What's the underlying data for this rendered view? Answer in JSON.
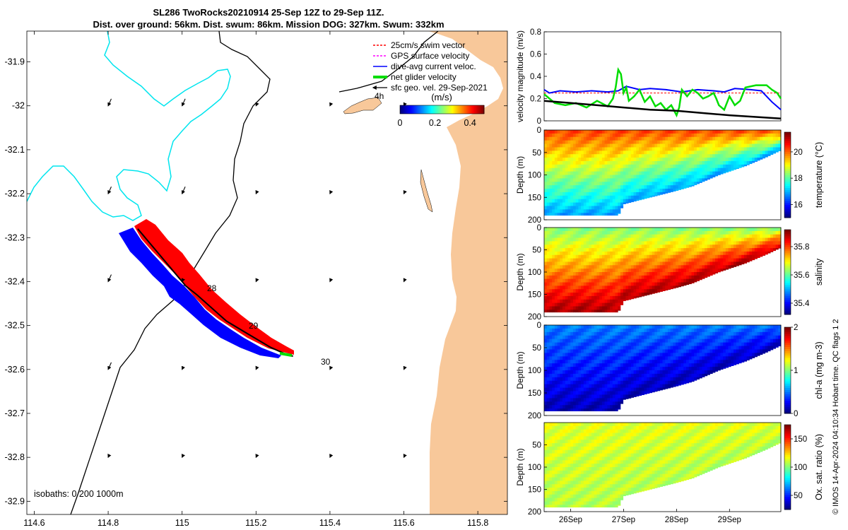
{
  "header": {
    "title_line1": "SL286 TwoRocks20210914 25-Sep 12Z to 29-Sep 11Z.",
    "title_line2": "Dist. over ground: 56km. Dist. swum: 86km. Mission DOG: 327km. Swum: 332km"
  },
  "colors": {
    "land": "#F8C89A",
    "isobath_0": "#00E5EE",
    "isobath_other": "#000000",
    "swim": "#FF0000",
    "gps": "#FF00FF",
    "current": "#0000FF",
    "net": "#00DD00",
    "geo": "#000000"
  },
  "map": {
    "isobaths_label": "isobaths: 0   200  1000m",
    "day_labels": [
      "28",
      "29",
      "30",
      "4h"
    ],
    "legend": {
      "items": [
        {
          "label": "25cm/s swim vector",
          "color": "#FF0000",
          "style": "dashed"
        },
        {
          "label": "GPS surface velocity",
          "color": "#FF00FF",
          "style": "dashed"
        },
        {
          "label": "dive-avg current veloc.",
          "color": "#0000FF",
          "style": "solid"
        },
        {
          "label": "net glider velocity",
          "color": "#00DD00",
          "style": "thick"
        },
        {
          "label": "sfc geo. vel. 29-Sep-2021",
          "color": "#000000",
          "style": "arrow"
        }
      ]
    },
    "colorbar": {
      "title": "(m/s)",
      "ticks": [
        "0",
        "0.2",
        "0.4"
      ]
    }
  },
  "chart_data": [
    {
      "type": "map",
      "xlabel": "",
      "ylabel": "",
      "xlim": [
        114.58,
        115.88
      ],
      "ylim": [
        -32.93,
        -31.83
      ],
      "xticks": [
        114.6,
        114.8,
        115,
        115.2,
        115.4,
        115.6,
        115.8
      ],
      "xtick_labels": [
        "114.6",
        "114.8",
        "115",
        "115.2",
        "115.4",
        "115.6",
        "115.8"
      ],
      "yticks": [
        -31.9,
        -32,
        -32.1,
        -32.2,
        -32.3,
        -32.4,
        -32.5,
        -32.6,
        -32.7,
        -32.8,
        -32.9
      ],
      "ytick_labels": [
        "-31.9",
        "-32",
        "-32.1",
        "-32.2",
        "-32.3",
        "-32.4",
        "-32.5",
        "-32.6",
        "-32.7",
        "-32.8",
        "-32.9"
      ],
      "glider_track": [
        [
          114.88,
          -32.28
        ],
        [
          114.93,
          -32.33
        ],
        [
          114.97,
          -32.37
        ],
        [
          115.01,
          -32.41
        ],
        [
          115.04,
          -32.43
        ],
        [
          115.08,
          -32.46
        ],
        [
          115.12,
          -32.49
        ],
        [
          115.18,
          -32.52
        ],
        [
          115.24,
          -32.55
        ],
        [
          115.28,
          -32.565
        ],
        [
          115.3,
          -32.57
        ]
      ]
    },
    {
      "type": "line",
      "xlabel": "",
      "ylabel": "velocity magnitude (m/s)",
      "xlim": [
        25.5,
        29.97
      ],
      "ylim": [
        0,
        0.8
      ],
      "yticks": [
        0,
        0.2,
        0.4,
        0.6,
        0.8
      ],
      "ytick_labels": [
        "0",
        "0.2",
        "0.4",
        "0.6",
        "0.8"
      ],
      "series": [
        {
          "color": "#FF0000",
          "x": [
            25.5,
            29.97
          ],
          "y": [
            0.25,
            0.25
          ]
        },
        {
          "color": "#0000FF",
          "x": [
            25.5,
            25.6,
            25.8,
            26.1,
            26.4,
            26.7,
            26.9,
            27.05,
            27.3,
            27.5,
            27.8,
            28.1,
            28.4,
            28.7,
            28.9,
            29.1,
            29.4,
            29.6,
            29.8,
            29.97
          ],
          "y": [
            0.28,
            0.25,
            0.27,
            0.26,
            0.27,
            0.26,
            0.27,
            0.31,
            0.28,
            0.29,
            0.28,
            0.26,
            0.28,
            0.27,
            0.26,
            0.29,
            0.28,
            0.27,
            0.17,
            0.1
          ]
        },
        {
          "color": "#00DD00",
          "x": [
            25.5,
            25.6,
            25.7,
            25.9,
            26.1,
            26.3,
            26.5,
            26.7,
            26.8,
            26.85,
            26.9,
            26.95,
            27.0,
            27.05,
            27.1,
            27.2,
            27.3,
            27.4,
            27.5,
            27.6,
            27.7,
            27.8,
            27.9,
            28.0,
            28.05,
            28.1,
            28.2,
            28.3,
            28.4,
            28.5,
            28.6,
            28.7,
            28.75,
            28.8,
            28.9,
            29.0,
            29.1,
            29.2,
            29.3,
            29.5,
            29.7,
            29.8,
            29.9,
            29.97
          ],
          "y": [
            0.24,
            0.2,
            0.16,
            0.14,
            0.16,
            0.12,
            0.18,
            0.13,
            0.2,
            0.3,
            0.46,
            0.42,
            0.25,
            0.3,
            0.18,
            0.22,
            0.28,
            0.17,
            0.22,
            0.13,
            0.16,
            0.1,
            0.14,
            0.05,
            0.12,
            0.28,
            0.22,
            0.28,
            0.25,
            0.2,
            0.22,
            0.25,
            0.2,
            0.14,
            0.1,
            0.22,
            0.14,
            0.18,
            0.3,
            0.32,
            0.32,
            0.28,
            0.25,
            0.2
          ]
        },
        {
          "color": "#000000",
          "x": [
            25.5,
            26.0,
            26.5,
            27.0,
            27.5,
            28.0,
            28.5,
            29.0,
            29.5,
            29.97
          ],
          "y": [
            0.18,
            0.16,
            0.14,
            0.12,
            0.1,
            0.09,
            0.07,
            0.05,
            0.035,
            0.02
          ]
        }
      ]
    },
    {
      "type": "heatmap",
      "xlabel": "",
      "ylabel": "Depth (m)",
      "xlim": [
        25.5,
        29.97
      ],
      "ylim": [
        200,
        0
      ],
      "yticks": [
        0,
        50,
        100,
        150,
        200
      ],
      "ytick_labels": [
        "0",
        "50",
        "100",
        "150",
        "200"
      ],
      "colorbar_label": "temperature (°C)",
      "clim": [
        15,
        21.5
      ],
      "colorbar_ticks": [
        16,
        18,
        20
      ],
      "colorbar_tick_labels": [
        "16",
        "18",
        "20"
      ],
      "bottom_depth": {
        "x": [
          25.5,
          26.0,
          26.5,
          26.9,
          27.0,
          28.0,
          28.3,
          28.8,
          29.3,
          29.7,
          29.97
        ],
        "y": [
          190,
          190,
          190,
          190,
          165,
          135,
          125,
          100,
          80,
          60,
          45
        ]
      },
      "surface_value": 20.3,
      "bottom_value": 16.8
    },
    {
      "type": "heatmap",
      "xlabel": "",
      "ylabel": "Depth (m)",
      "xlim": [
        25.5,
        29.97
      ],
      "ylim": [
        200,
        0
      ],
      "yticks": [
        0,
        50,
        100,
        150,
        200
      ],
      "ytick_labels": [
        "0",
        "50",
        "100",
        "150",
        "200"
      ],
      "colorbar_label": "salinity",
      "clim": [
        35.32,
        35.92
      ],
      "colorbar_ticks": [
        35.4,
        35.6,
        35.8
      ],
      "colorbar_tick_labels": [
        "35.4",
        "35.6",
        "35.8"
      ],
      "bottom_depth": {
        "x": [
          25.5,
          26.0,
          26.5,
          26.9,
          27.0,
          28.0,
          28.3,
          28.8,
          29.3,
          29.7,
          29.97
        ],
        "y": [
          190,
          190,
          190,
          190,
          165,
          135,
          125,
          100,
          80,
          60,
          45
        ]
      },
      "surface_value": 35.62,
      "bottom_value": 35.9
    },
    {
      "type": "heatmap",
      "xlabel": "",
      "ylabel": "Depth (m)",
      "xlim": [
        25.5,
        29.97
      ],
      "ylim": [
        200,
        0
      ],
      "yticks": [
        0,
        50,
        100,
        150,
        200
      ],
      "ytick_labels": [
        "0",
        "50",
        "100",
        "150",
        "200"
      ],
      "colorbar_label": "chl-a (mg m-3)",
      "clim": [
        0,
        2
      ],
      "colorbar_ticks": [
        0,
        1,
        2
      ],
      "colorbar_tick_labels": [
        "0",
        "1",
        "2"
      ],
      "bottom_depth": {
        "x": [
          25.5,
          26.0,
          26.5,
          26.9,
          27.0,
          28.0,
          28.3,
          28.8,
          29.3,
          29.7,
          29.97
        ],
        "y": [
          190,
          190,
          190,
          190,
          165,
          135,
          125,
          100,
          80,
          60,
          45
        ]
      },
      "surface_value": 0.5,
      "bottom_value": 0.1
    },
    {
      "type": "heatmap",
      "xlabel": "",
      "ylabel": "Depth (m)",
      "xlim": [
        25.5,
        29.97
      ],
      "ylim": [
        200,
        0
      ],
      "yticks": [
        50,
        100,
        150,
        200
      ],
      "ytick_labels": [
        "50",
        "100",
        "150",
        "200"
      ],
      "xticks": [
        26,
        27,
        28,
        29
      ],
      "xtick_labels": [
        "26Sep",
        "27Sep",
        "28Sep",
        "29Sep"
      ],
      "colorbar_label": "Ox. sat. ratio (%)",
      "clim": [
        25,
        175
      ],
      "colorbar_ticks": [
        50,
        100,
        150
      ],
      "colorbar_tick_labels": [
        "50",
        "100",
        "150"
      ],
      "bottom_depth": {
        "x": [
          25.5,
          26.0,
          26.5,
          26.9,
          27.0,
          28.0,
          28.3,
          28.8,
          29.3,
          29.7,
          29.97
        ],
        "y": [
          190,
          190,
          190,
          190,
          165,
          135,
          125,
          100,
          80,
          60,
          45
        ]
      },
      "surface_value": 115,
      "bottom_value": 108
    }
  ],
  "footer": {
    "text": "© IMOS 14-Apr-2024 04:10:34 Hobart time. QC flags 1  2"
  }
}
